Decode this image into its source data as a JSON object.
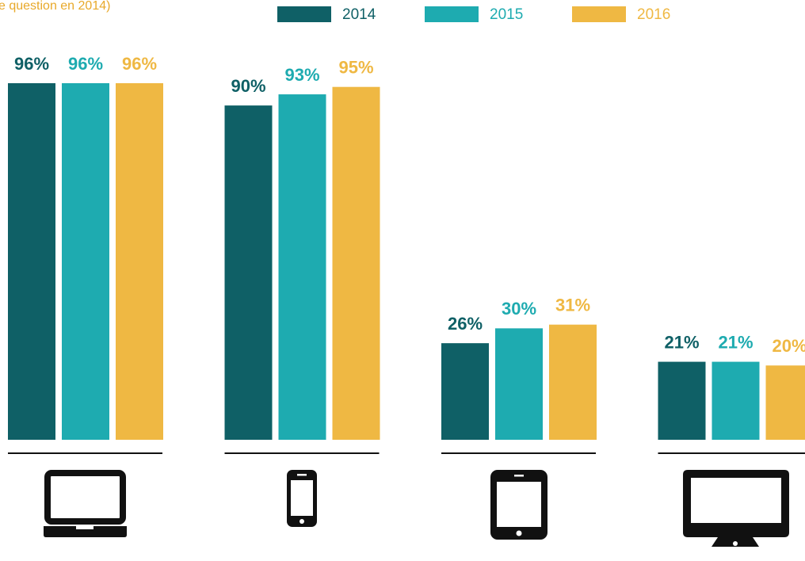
{
  "chart_data": {
    "type": "bar",
    "subtitle": "e question en 2014)",
    "categories": [
      null,
      null,
      null,
      null
    ],
    "series": [
      {
        "name": "2014",
        "color": "#0f6066",
        "values": [
          96,
          90,
          26,
          21
        ],
        "value_labels": [
          "96%",
          "90%",
          "26%",
          "21%"
        ]
      },
      {
        "name": "2015",
        "color": "#1eabb0",
        "values": [
          96,
          93,
          30,
          21
        ],
        "value_labels": [
          "96%",
          "93%",
          "30%",
          "21%"
        ]
      },
      {
        "name": "2016",
        "color": "#efb843",
        "values": [
          96,
          95,
          31,
          20
        ],
        "value_labels": [
          "96%",
          "95%",
          "31%",
          "20%"
        ]
      }
    ],
    "legend": "top"
  }
}
